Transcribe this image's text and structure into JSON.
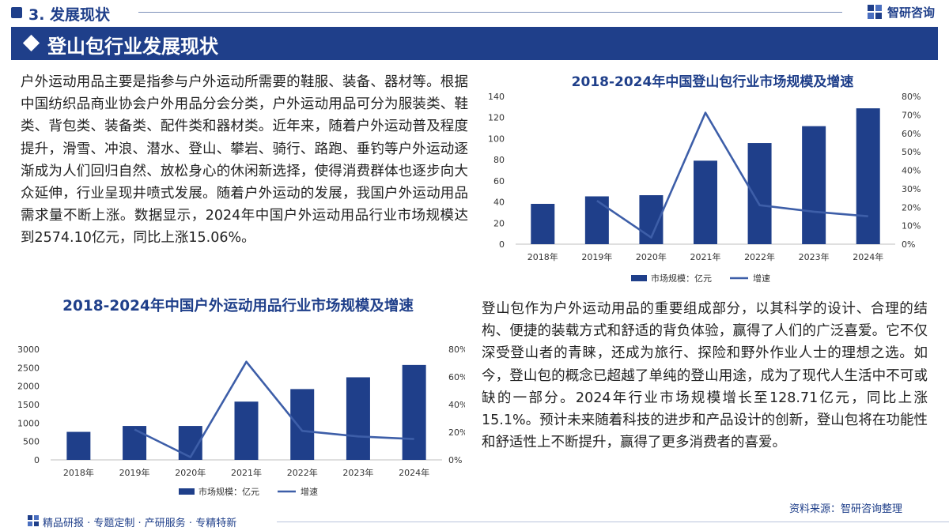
{
  "header": {
    "section_label": "3. 发展现状",
    "brand_name": "智研咨询"
  },
  "banner": {
    "title": "登山包行业发展现状"
  },
  "paragraphs": {
    "outdoor": "户外运动用品主要是指参与户外运动所需要的鞋服、装备、器材等。根据中国纺织品商业协会户外用品分会分类，户外运动用品可分为服装类、鞋类、背包类、装备类、配件类和器材类。近年来，随着户外运动普及程度提升，滑雪、冲浪、潜水、登山、攀岩、骑行、路跑、垂钓等户外运动逐渐成为人们回归自然、放松身心的休闲新选择，使得消费群体也逐步向大众延伸，行业呈现井喷式发展。随着户外运动的发展，我国户外运动用品需求量不断上涨。数据显示，2024年中国户外运动用品行业市场规模达到2574.10亿元，同比上涨15.06%。",
    "backpack": "登山包作为户外运动用品的重要组成部分，以其科学的设计、合理的结构、便捷的装载方式和舒适的背负体验，赢得了人们的广泛喜爱。它不仅深受登山者的青睐，还成为旅行、探险和野外作业人士的理想之选。如今，登山包的概念已超越了单纯的登山用途，成为了现代人生活中不可或缺的一部分。2024年行业市场规模增长至128.71亿元，同比上涨15.1%。预计未来随着科技的进步和产品设计的创新，登山包将在功能性和舒适性上不断提升，赢得了更多消费者的喜爱。"
  },
  "source": "资料来源：智研咨询整理",
  "footer": {
    "text": "精品研报 · 专题定制 · 产研服务 · 专精特新"
  },
  "colors": {
    "brand": "#1f3f8a",
    "bar": "#1f3f8a",
    "line": "#3d5ea8"
  },
  "chart_data": [
    {
      "type": "bar",
      "title": "2018-2024年中国登山包行业市场规模及增速",
      "categories": [
        "2018年",
        "2019年",
        "2020年",
        "2021年",
        "2022年",
        "2023年",
        "2024年"
      ],
      "series": [
        {
          "name": "市场规模：亿元",
          "type": "bar",
          "axis": "left",
          "values": [
            38.2,
            45.3,
            46.4,
            79.1,
            95.8,
            111.8,
            128.71
          ]
        },
        {
          "name": "增速",
          "type": "line",
          "axis": "right",
          "values": [
            null,
            23.5,
            3.6,
            71.2,
            21.1,
            17.6,
            15.1
          ]
        }
      ],
      "ylim_left": [
        0,
        140
      ],
      "yticks_left": [
        "0",
        "20",
        "40",
        "60",
        "80",
        "100",
        "120",
        "140"
      ],
      "ylim_right": [
        0,
        80
      ],
      "yticks_right": [
        "0%",
        "10%",
        "20%",
        "30%",
        "40%",
        "50%",
        "60%",
        "70%",
        "80%"
      ],
      "legend": [
        "市场规模：亿元",
        "增速"
      ],
      "legend_position": "bottom"
    },
    {
      "type": "bar",
      "title": "2018-2024年中国户外运动用品行业市场规模及增速",
      "categories": [
        "2018年",
        "2019年",
        "2020年",
        "2021年",
        "2022年",
        "2023年",
        "2024年"
      ],
      "series": [
        {
          "name": "市场规模：亿元",
          "type": "bar",
          "axis": "left",
          "values": [
            760,
            920,
            920,
            1580,
            1920,
            2240,
            2574.1
          ]
        },
        {
          "name": "增速",
          "type": "line",
          "axis": "right",
          "values": [
            null,
            22,
            2,
            71,
            21,
            17,
            15.06
          ]
        }
      ],
      "ylim_left": [
        0,
        3000
      ],
      "yticks_left": [
        "0",
        "500",
        "1000",
        "1500",
        "2000",
        "2500",
        "3000"
      ],
      "ylim_right": [
        0,
        80
      ],
      "yticks_right": [
        "0%",
        "20%",
        "40%",
        "60%",
        "80%"
      ],
      "legend": [
        "市场规模：亿元",
        "增速"
      ],
      "legend_position": "bottom"
    }
  ]
}
